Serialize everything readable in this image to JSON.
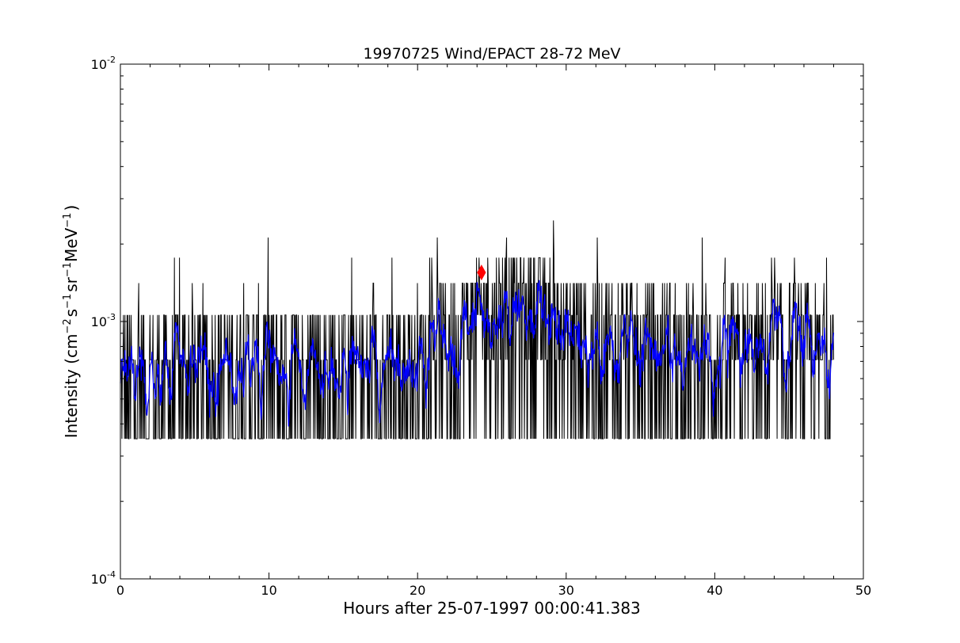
{
  "chart_data": {
    "type": "line",
    "title": "19970725 Wind/EPACT 28-72 MeV",
    "xlabel": "Hours after 25-07-1997 00:00:41.383",
    "ylabel": {
      "prefix": "Intensity (cm",
      "exp1": "−2",
      "part2": "s",
      "exp2": "−1",
      "part3": "sr",
      "exp3": "−1",
      "part4": "MeV",
      "exp4": "−1",
      "suffix": ")"
    },
    "xlim": [
      0,
      50
    ],
    "ylim": [
      0.0001,
      0.01
    ],
    "yscale": "log",
    "grid": false,
    "x_ticks": [
      {
        "value": 0,
        "label": "0"
      },
      {
        "value": 10,
        "label": "10"
      },
      {
        "value": 20,
        "label": "20"
      },
      {
        "value": 30,
        "label": "30"
      },
      {
        "value": 40,
        "label": "40"
      },
      {
        "value": 50,
        "label": "50"
      }
    ],
    "y_ticks": [
      {
        "value": 0.0001,
        "base": "10",
        "exp": "-4"
      },
      {
        "value": 0.001,
        "base": "10",
        "exp": "-3"
      },
      {
        "value": 0.01,
        "base": "10",
        "exp": "-2"
      }
    ],
    "series": [
      {
        "color": "#000000",
        "style": "line",
        "detection_level": 0.00035,
        "quantized_levels": [
          0.00035,
          0.00071,
          0.00106,
          0.00141,
          0.00177,
          0.00212,
          0.00247,
          0.00283,
          0.00318
        ],
        "x_range": [
          0,
          48
        ]
      },
      {
        "color": "#0000ff",
        "style": "line",
        "x_range": [
          0,
          48
        ]
      }
    ],
    "profile_points": [
      {
        "x": 0,
        "y": 0.00055
      },
      {
        "x": 5,
        "y": 0.0006
      },
      {
        "x": 10,
        "y": 0.00062
      },
      {
        "x": 15,
        "y": 0.00062
      },
      {
        "x": 20,
        "y": 0.00064
      },
      {
        "x": 22,
        "y": 0.0008
      },
      {
        "x": 24.5,
        "y": 0.0011
      },
      {
        "x": 26,
        "y": 0.00105
      },
      {
        "x": 27.5,
        "y": 0.0011
      },
      {
        "x": 30,
        "y": 0.00085
      },
      {
        "x": 35,
        "y": 0.00075
      },
      {
        "x": 40,
        "y": 0.00068
      },
      {
        "x": 45,
        "y": 0.0007
      },
      {
        "x": 48,
        "y": 0.00065
      }
    ],
    "marker": {
      "x": 24.3,
      "y": 0.00155,
      "shape": "diamond",
      "color": "#ff0000"
    }
  }
}
